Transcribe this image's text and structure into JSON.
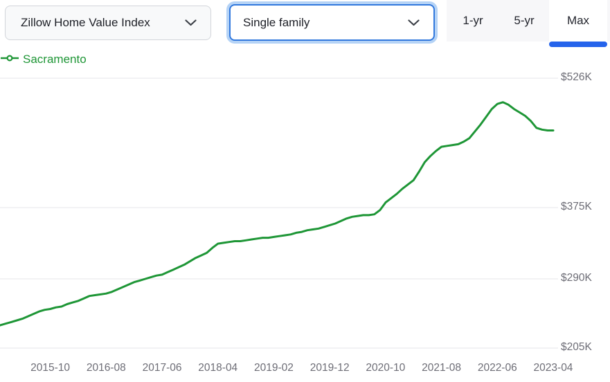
{
  "header": {
    "metric_dropdown": {
      "value": "Zillow Home Value Index"
    },
    "home_type_dropdown": {
      "value": "Single family"
    },
    "range_tabs": [
      {
        "label": "1-yr",
        "selected": false
      },
      {
        "label": "5-yr",
        "selected": false
      },
      {
        "label": "Max",
        "selected": true
      }
    ]
  },
  "legend": {
    "series_label": "Sacramento"
  },
  "colors": {
    "line_green": "#1e9636",
    "accent_blue": "#2563eb",
    "focus_border": "#3178dd",
    "focus_ring": "#b5d3f6",
    "gridline": "#ededf0",
    "axis_text": "#6d6d76"
  },
  "chart_data": {
    "type": "line",
    "title": "Zillow Home Value Index — Sacramento (Single family, Max range)",
    "xlabel": "",
    "ylabel": "",
    "grid": "horizontal",
    "legend_position": "top-left",
    "y_axis_side": "right",
    "y_ticks": [
      {
        "label": "$526K",
        "value_k": 526
      },
      {
        "label": "$375K",
        "value_k": 375
      },
      {
        "label": "$290K",
        "value_k": 290
      },
      {
        "label": "$205K",
        "value_k": 205
      }
    ],
    "x_ticks": [
      "2015-10",
      "2016-08",
      "2017-06",
      "2018-04",
      "2019-02",
      "2019-12",
      "2020-10",
      "2021-08",
      "2022-06",
      "2023-04"
    ],
    "x_range": [
      "2015-01",
      "2023-04"
    ],
    "series": [
      {
        "name": "Sacramento",
        "unit": "USD thousands",
        "points": [
          [
            "2015-01",
            233
          ],
          [
            "2015-02",
            235
          ],
          [
            "2015-03",
            237
          ],
          [
            "2015-04",
            239
          ],
          [
            "2015-05",
            241
          ],
          [
            "2015-06",
            244
          ],
          [
            "2015-07",
            247
          ],
          [
            "2015-08",
            250
          ],
          [
            "2015-09",
            252
          ],
          [
            "2015-10",
            253
          ],
          [
            "2015-11",
            255
          ],
          [
            "2015-12",
            256
          ],
          [
            "2016-01",
            259
          ],
          [
            "2016-02",
            261
          ],
          [
            "2016-03",
            263
          ],
          [
            "2016-04",
            266
          ],
          [
            "2016-05",
            269
          ],
          [
            "2016-06",
            270
          ],
          [
            "2016-07",
            271
          ],
          [
            "2016-08",
            272
          ],
          [
            "2016-09",
            274
          ],
          [
            "2016-10",
            277
          ],
          [
            "2016-11",
            280
          ],
          [
            "2016-12",
            283
          ],
          [
            "2017-01",
            286
          ],
          [
            "2017-02",
            288
          ],
          [
            "2017-03",
            290
          ],
          [
            "2017-04",
            292
          ],
          [
            "2017-05",
            294
          ],
          [
            "2017-06",
            295
          ],
          [
            "2017-07",
            298
          ],
          [
            "2017-08",
            301
          ],
          [
            "2017-09",
            304
          ],
          [
            "2017-10",
            307
          ],
          [
            "2017-11",
            311
          ],
          [
            "2017-12",
            315
          ],
          [
            "2018-01",
            318
          ],
          [
            "2018-02",
            321
          ],
          [
            "2018-03",
            327
          ],
          [
            "2018-04",
            332
          ],
          [
            "2018-05",
            333
          ],
          [
            "2018-06",
            334
          ],
          [
            "2018-07",
            335
          ],
          [
            "2018-08",
            335
          ],
          [
            "2018-09",
            336
          ],
          [
            "2018-10",
            337
          ],
          [
            "2018-11",
            338
          ],
          [
            "2018-12",
            339
          ],
          [
            "2019-01",
            339
          ],
          [
            "2019-02",
            340
          ],
          [
            "2019-03",
            341
          ],
          [
            "2019-04",
            342
          ],
          [
            "2019-05",
            343
          ],
          [
            "2019-06",
            345
          ],
          [
            "2019-07",
            346
          ],
          [
            "2019-08",
            348
          ],
          [
            "2019-09",
            349
          ],
          [
            "2019-10",
            350
          ],
          [
            "2019-11",
            352
          ],
          [
            "2019-12",
            354
          ],
          [
            "2020-01",
            356
          ],
          [
            "2020-02",
            359
          ],
          [
            "2020-03",
            362
          ],
          [
            "2020-04",
            364
          ],
          [
            "2020-05",
            365
          ],
          [
            "2020-06",
            366
          ],
          [
            "2020-07",
            366
          ],
          [
            "2020-08",
            367
          ],
          [
            "2020-09",
            372
          ],
          [
            "2020-10",
            381
          ],
          [
            "2020-11",
            386
          ],
          [
            "2020-12",
            391
          ],
          [
            "2021-01",
            397
          ],
          [
            "2021-02",
            402
          ],
          [
            "2021-03",
            407
          ],
          [
            "2021-04",
            417
          ],
          [
            "2021-05",
            428
          ],
          [
            "2021-06",
            435
          ],
          [
            "2021-07",
            441
          ],
          [
            "2021-08",
            446
          ],
          [
            "2021-09",
            447
          ],
          [
            "2021-10",
            448
          ],
          [
            "2021-11",
            449
          ],
          [
            "2021-12",
            452
          ],
          [
            "2022-01",
            456
          ],
          [
            "2022-02",
            464
          ],
          [
            "2022-03",
            472
          ],
          [
            "2022-04",
            481
          ],
          [
            "2022-05",
            490
          ],
          [
            "2022-06",
            496
          ],
          [
            "2022-07",
            498
          ],
          [
            "2022-08",
            495
          ],
          [
            "2022-09",
            490
          ],
          [
            "2022-10",
            486
          ],
          [
            "2022-11",
            482
          ],
          [
            "2022-12",
            476
          ],
          [
            "2023-01",
            468
          ],
          [
            "2023-02",
            466
          ],
          [
            "2023-03",
            465
          ],
          [
            "2023-04",
            465
          ]
        ]
      }
    ]
  }
}
